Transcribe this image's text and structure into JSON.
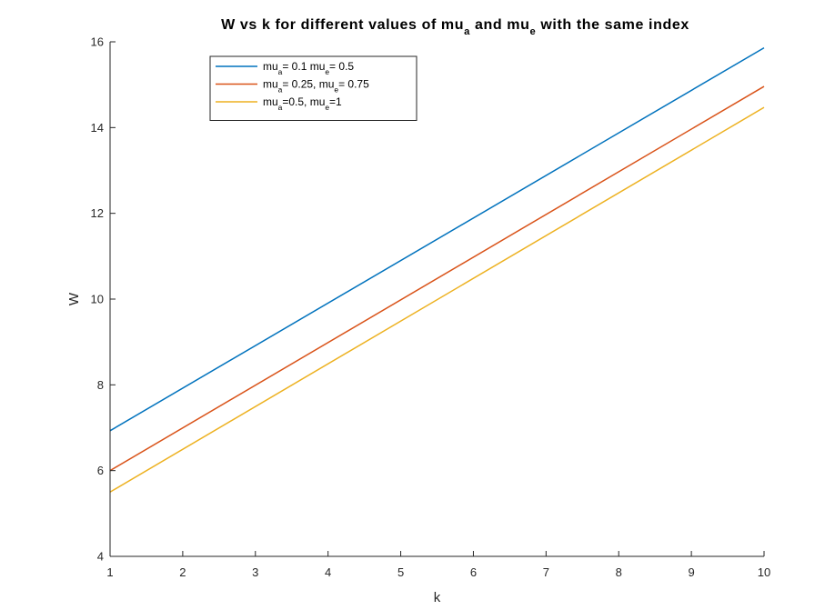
{
  "chart_data": {
    "type": "line",
    "title": {
      "parts": [
        {
          "t": "W vs k for different values of mu"
        },
        {
          "t": "a",
          "sub": true
        },
        {
          "t": " and mu"
        },
        {
          "t": "e",
          "sub": true
        },
        {
          "t": " with the same index"
        }
      ]
    },
    "xlabel": "k",
    "ylabel": "W",
    "xlim": [
      1,
      10
    ],
    "ylim": [
      4,
      16
    ],
    "xticks": [
      "1",
      "2",
      "3",
      "4",
      "5",
      "6",
      "7",
      "8",
      "9",
      "10"
    ],
    "yticks": [
      "4",
      "6",
      "8",
      "10",
      "12",
      "14",
      "16"
    ],
    "grid": false,
    "legend_position": "top-left",
    "series": [
      {
        "name": "mu_a= 0.1  mu_e= 0.5",
        "legend_parts": [
          {
            "t": "mu"
          },
          {
            "t": "a",
            "sub": true
          },
          {
            "t": "= 0.1  mu"
          },
          {
            "t": "e",
            "sub": true
          },
          {
            "t": "= 0.5"
          }
        ],
        "color": "#0072BD",
        "x": [
          1,
          10
        ],
        "y": [
          6.93,
          15.86
        ]
      },
      {
        "name": "mu_a= 0.25,  mu_e= 0.75",
        "legend_parts": [
          {
            "t": "mu"
          },
          {
            "t": "a",
            "sub": true
          },
          {
            "t": "= 0.25,  mu"
          },
          {
            "t": "e",
            "sub": true
          },
          {
            "t": "= 0.75"
          }
        ],
        "color": "#D95319",
        "x": [
          1,
          10
        ],
        "y": [
          6.0,
          14.96
        ]
      },
      {
        "name": "mu_a=0.5,  mu_e=1",
        "legend_parts": [
          {
            "t": "mu"
          },
          {
            "t": "a",
            "sub": true
          },
          {
            "t": "=0.5,  mu"
          },
          {
            "t": "e",
            "sub": true
          },
          {
            "t": "=1"
          }
        ],
        "color": "#EDB120",
        "x": [
          1,
          10
        ],
        "y": [
          5.5,
          14.47
        ]
      }
    ]
  }
}
